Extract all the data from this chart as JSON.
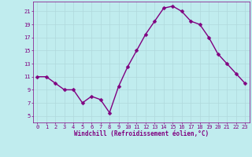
{
  "x": [
    0,
    1,
    2,
    3,
    4,
    5,
    6,
    7,
    8,
    9,
    10,
    11,
    12,
    13,
    14,
    15,
    16,
    17,
    18,
    19,
    20,
    21,
    22,
    23
  ],
  "y": [
    11,
    11,
    10,
    9,
    9,
    7,
    8,
    7.5,
    5.5,
    9.5,
    12.5,
    15,
    17.5,
    19.5,
    21.5,
    21.8,
    21,
    19.5,
    19,
    17,
    14.5,
    13,
    11.5,
    10
  ],
  "line_color": "#800080",
  "marker_color": "#800080",
  "bg_color": "#c0ecee",
  "grid_color": "#b0d8dc",
  "xlabel": "Windchill (Refroidissement éolien,°C)",
  "xlabel_color": "#800080",
  "tick_color": "#800080",
  "ylim": [
    4,
    22.5
  ],
  "yticks": [
    5,
    7,
    9,
    11,
    13,
    15,
    17,
    19,
    21
  ],
  "xticks": [
    0,
    1,
    2,
    3,
    4,
    5,
    6,
    7,
    8,
    9,
    10,
    11,
    12,
    13,
    14,
    15,
    16,
    17,
    18,
    19,
    20,
    21,
    22,
    23
  ],
  "line_width": 1.0,
  "marker_size": 2.5
}
